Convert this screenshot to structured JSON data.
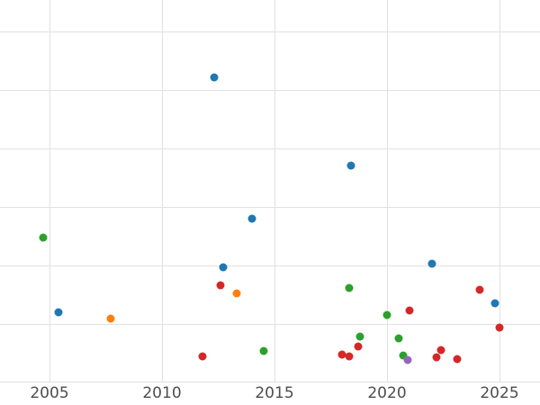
{
  "chart": {
    "background_color": "#ffffff",
    "grid_color": "#e1e1e1",
    "tick_label_color": "#4d4d4d"
  },
  "chart_data": {
    "type": "scatter",
    "title": "",
    "xlabel": "",
    "ylabel": "",
    "grid": true,
    "legend": false,
    "xlim": [
      2002.8,
      2026.8
    ],
    "ylim": [
      0,
      6.54
    ],
    "x_ticks": [
      2005,
      2010,
      2015,
      2020,
      2025
    ],
    "x_tick_labels": [
      "2005",
      "2010",
      "2015",
      "2020",
      "2025"
    ],
    "y_gridline_values": [
      0,
      1,
      2,
      3,
      4,
      5,
      6
    ],
    "series": [
      {
        "name": "blue",
        "color": "#1f77b4",
        "points": [
          [
            2012.3,
            5.22
          ],
          [
            2018.4,
            3.71
          ],
          [
            2014.0,
            2.8
          ],
          [
            2012.7,
            1.97
          ],
          [
            2022.0,
            2.03
          ],
          [
            2005.4,
            1.2
          ],
          [
            2024.8,
            1.35
          ]
        ]
      },
      {
        "name": "orange",
        "color": "#ff7f0e",
        "points": [
          [
            2007.7,
            1.09
          ],
          [
            2013.3,
            1.52
          ]
        ]
      },
      {
        "name": "green",
        "color": "#2ca02c",
        "points": [
          [
            2004.7,
            2.48
          ],
          [
            2018.3,
            1.62
          ],
          [
            2020.0,
            1.15
          ],
          [
            2018.8,
            0.78
          ],
          [
            2020.5,
            0.75
          ],
          [
            2014.5,
            0.54
          ],
          [
            2020.7,
            0.46
          ]
        ]
      },
      {
        "name": "red",
        "color": "#d62728",
        "points": [
          [
            2012.6,
            1.66
          ],
          [
            2024.1,
            1.58
          ],
          [
            2021.0,
            1.23
          ],
          [
            2025.0,
            0.94
          ],
          [
            2018.7,
            0.62
          ],
          [
            2018.0,
            0.48
          ],
          [
            2018.3,
            0.45
          ],
          [
            2011.8,
            0.45
          ],
          [
            2022.4,
            0.55
          ],
          [
            2022.2,
            0.43
          ],
          [
            2023.1,
            0.4
          ]
        ]
      },
      {
        "name": "purple",
        "color": "#9467bd",
        "points": [
          [
            2020.9,
            0.38
          ]
        ]
      }
    ]
  }
}
